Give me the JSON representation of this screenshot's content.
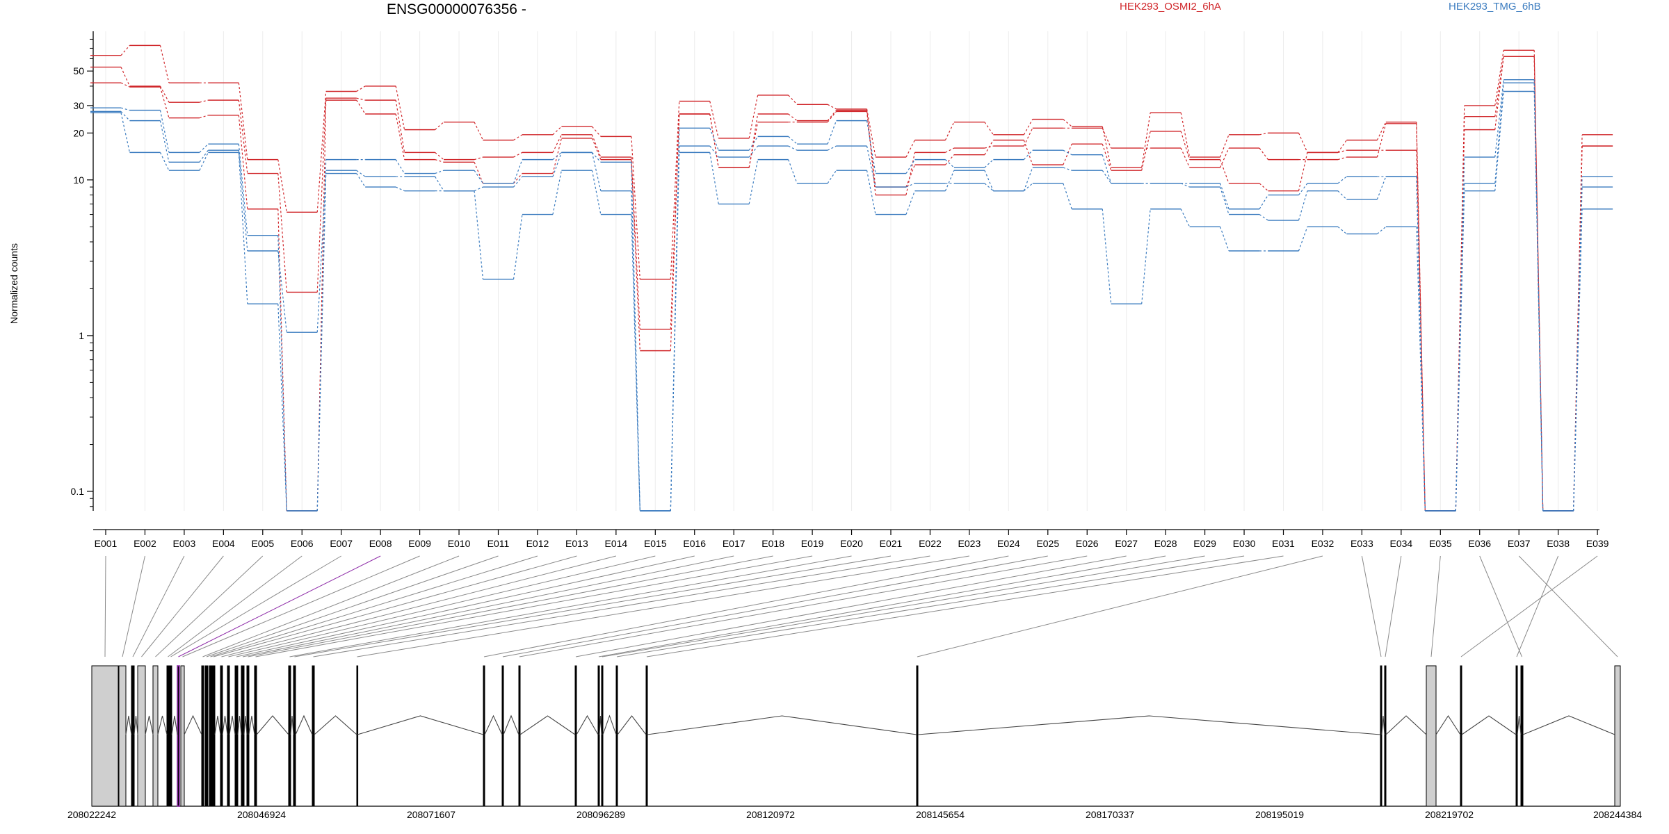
{
  "chart_data": {
    "type": "line",
    "title": "ENSG00000076356 -",
    "ylabel": "Normalized counts",
    "yscale": "log",
    "ylim": [
      0.075,
      90
    ],
    "yticks": [
      {
        "value": 0.1,
        "label": "0.1"
      },
      {
        "value": 1,
        "label": "1"
      },
      {
        "value": 10,
        "label": "10"
      },
      {
        "value": 20,
        "label": "20"
      },
      {
        "value": 30,
        "label": "30"
      },
      {
        "value": 50,
        "label": "50"
      }
    ],
    "categories": [
      "E001",
      "E002",
      "E003",
      "E004",
      "E005",
      "E006",
      "E007",
      "E008",
      "E009",
      "E010",
      "E011",
      "E012",
      "E013",
      "E014",
      "E015",
      "E016",
      "E017",
      "E018",
      "E019",
      "E020",
      "E021",
      "E022",
      "E023",
      "E024",
      "E025",
      "E026",
      "E027",
      "E028",
      "E029",
      "E030",
      "E031",
      "E032",
      "E033",
      "E034",
      "E035",
      "E036",
      "E037",
      "E038",
      "E039"
    ],
    "legend": [
      {
        "name": "HEK293_OSMI2_6hA",
        "color": "#d0262a"
      },
      {
        "name": "HEK293_TMG_6hB",
        "color": "#3a7bbf"
      }
    ],
    "series": [
      {
        "group": "HEK293_OSMI2_6hA",
        "color": "#d0262a",
        "values": [
          63,
          73,
          42,
          42,
          13.5,
          6.2,
          37,
          40,
          21,
          23.5,
          18,
          19.5,
          22,
          19,
          2.3,
          32,
          18.5,
          35,
          30.5,
          28.5,
          14,
          18,
          23.5,
          19.5,
          24.5,
          22,
          12,
          27,
          14,
          19.5,
          20,
          15,
          18,
          23.5,
          0.075,
          30,
          68,
          0.075,
          19.5
        ]
      },
      {
        "group": "HEK293_OSMI2_6hA",
        "color": "#d0262a",
        "values": [
          53,
          40,
          31.5,
          32.5,
          11,
          1.9,
          33.5,
          32.5,
          15,
          13.5,
          14,
          15,
          19.5,
          14,
          1.1,
          26.5,
          12,
          26.5,
          24,
          28,
          8,
          15,
          16,
          16.5,
          21.5,
          21.5,
          16,
          16,
          12,
          16,
          13.5,
          13.5,
          14,
          23,
          0.075,
          25.5,
          62,
          0.075,
          16.5
        ]
      },
      {
        "group": "HEK293_OSMI2_6hA",
        "color": "#d0262a",
        "values": [
          42,
          39.5,
          25,
          26,
          6.5,
          0.075,
          32.5,
          26.5,
          13.5,
          13,
          9.5,
          11,
          18.5,
          13.5,
          0.8,
          26.5,
          12,
          23.5,
          23.5,
          27.5,
          9,
          12.5,
          14.5,
          18,
          12.5,
          17,
          11.5,
          20.5,
          13.5,
          9.5,
          8.5,
          15,
          15.5,
          15.5,
          0.075,
          21,
          62,
          0.075,
          16.5
        ]
      },
      {
        "group": "HEK293_TMG_6hB",
        "color": "#3a7bbf",
        "values": [
          29,
          28,
          15,
          17,
          4.4,
          0.075,
          13.5,
          13.5,
          11,
          11.5,
          9.5,
          13.5,
          15,
          8.5,
          0.075,
          21.5,
          15.5,
          19,
          17,
          24,
          11,
          13.5,
          12,
          13.5,
          15.5,
          14.5,
          9.5,
          9.5,
          9.5,
          6.5,
          8,
          9.5,
          10.5,
          10.5,
          0.075,
          14,
          44,
          0.075,
          10.5
        ]
      },
      {
        "group": "HEK293_TMG_6hB",
        "color": "#3a7bbf",
        "values": [
          27.5,
          24,
          13,
          15.5,
          3.5,
          1.05,
          11.5,
          10.5,
          10.5,
          8.5,
          9,
          10.5,
          15,
          13,
          0.075,
          16.5,
          14,
          16.5,
          15.5,
          16.5,
          9,
          9.5,
          9.5,
          8.5,
          12,
          11.5,
          9.5,
          9.5,
          9,
          6,
          5.5,
          8.5,
          7.5,
          10.5,
          0.075,
          9.5,
          42,
          0.075,
          9
        ]
      },
      {
        "group": "HEK293_TMG_6hB",
        "color": "#3a7bbf",
        "values": [
          27,
          15,
          11.5,
          15,
          1.6,
          0.075,
          11,
          9,
          8.5,
          8.5,
          2.3,
          6,
          11.5,
          6,
          0.075,
          15,
          7,
          13.5,
          9.5,
          11.5,
          6,
          8.5,
          11.5,
          8.5,
          9.5,
          6.5,
          1.6,
          6.5,
          5,
          3.5,
          3.5,
          5,
          4.5,
          5,
          0.075,
          8.5,
          37,
          0.075,
          6.5
        ]
      }
    ],
    "gene_model": {
      "genomic_ticks": [
        "208022242",
        "208046924",
        "208071607",
        "208096289",
        "208120972",
        "208145654",
        "208170337",
        "208195019",
        "208219702",
        "208244384"
      ],
      "highlighted_exon": "E008"
    }
  }
}
